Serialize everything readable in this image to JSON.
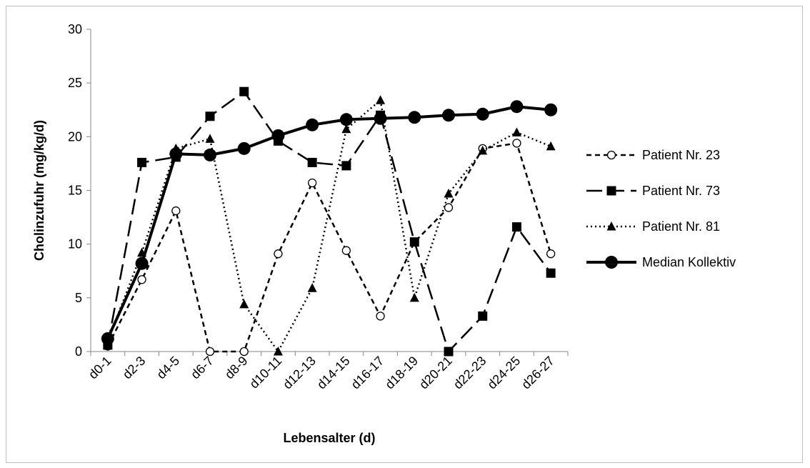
{
  "chart_data": {
    "type": "line",
    "title": "",
    "xlabel": "Lebensalter (d)",
    "ylabel": "Cholinzufuhr (mg/kg/d)",
    "ylim": [
      0,
      30
    ],
    "yticks": [
      0,
      5,
      10,
      15,
      20,
      25,
      30
    ],
    "grid": false,
    "legend_position": "right",
    "categories": [
      "d0-1",
      "d2-3",
      "d4-5",
      "d6-7",
      "d8-9",
      "d10-11",
      "d12-13",
      "d14-15",
      "d16-17",
      "d18-19",
      "d20-21",
      "d22-23",
      "d24-25",
      "d26-27"
    ],
    "series": [
      {
        "name": "Patient Nr. 23",
        "values": [
          0.5,
          6.7,
          13.1,
          0,
          0,
          9.1,
          15.7,
          9.4,
          3.3,
          10.2,
          13.4,
          18.9,
          19.4,
          9.1
        ],
        "line": "short-dash",
        "marker": "open-circle",
        "color": "#000000"
      },
      {
        "name": "Patient Nr. 73",
        "values": [
          0.6,
          17.6,
          18.1,
          21.9,
          24.2,
          19.6,
          17.6,
          17.3,
          22.0,
          10.2,
          0,
          3.3,
          11.6,
          7.3
        ],
        "line": "long-dash",
        "marker": "square",
        "color": "#000000"
      },
      {
        "name": "Patient Nr. 81",
        "values": [
          1.0,
          9.2,
          18.9,
          19.8,
          4.4,
          0,
          5.9,
          20.7,
          23.4,
          5.0,
          14.7,
          18.7,
          20.4,
          19.1
        ],
        "line": "dotted",
        "marker": "triangle",
        "color": "#000000"
      },
      {
        "name": "Median Kollektiv",
        "values": [
          1.2,
          8.2,
          18.4,
          18.3,
          18.9,
          20.1,
          21.1,
          21.6,
          21.7,
          21.8,
          22.0,
          22.1,
          22.8,
          22.5
        ],
        "line": "solid-thick",
        "marker": "filled-circle",
        "color": "#000000"
      }
    ]
  }
}
